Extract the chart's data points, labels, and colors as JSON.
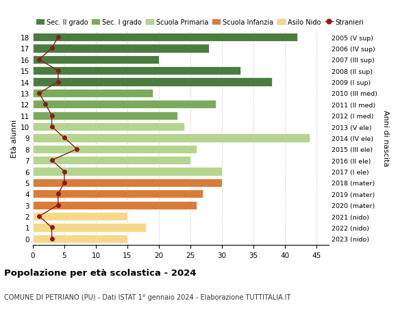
{
  "ages": [
    18,
    17,
    16,
    15,
    14,
    13,
    12,
    11,
    10,
    9,
    8,
    7,
    6,
    5,
    4,
    3,
    2,
    1,
    0
  ],
  "years": [
    "2005 (V sup)",
    "2006 (IV sup)",
    "2007 (III sup)",
    "2008 (II sup)",
    "2009 (I sup)",
    "2010 (III med)",
    "2011 (II med)",
    "2012 (I med)",
    "2013 (V ele)",
    "2014 (IV ele)",
    "2015 (III ele)",
    "2016 (II ele)",
    "2017 (I ele)",
    "2018 (mater)",
    "2019 (mater)",
    "2020 (mater)",
    "2021 (nido)",
    "2022 (nido)",
    "2023 (nido)"
  ],
  "bar_values": [
    42,
    28,
    20,
    33,
    38,
    19,
    29,
    23,
    24,
    44,
    26,
    25,
    30,
    30,
    27,
    26,
    15,
    18,
    15
  ],
  "bar_colors": [
    "#4a7c3f",
    "#4a7c3f",
    "#4a7c3f",
    "#4a7c3f",
    "#4a7c3f",
    "#7aab5c",
    "#7aab5c",
    "#7aab5c",
    "#b5d48e",
    "#b5d48e",
    "#b5d48e",
    "#b5d48e",
    "#b5d48e",
    "#d97c3a",
    "#d97c3a",
    "#d97c3a",
    "#f5d98b",
    "#f5d98b",
    "#f5d98b"
  ],
  "stranieri_values": [
    4,
    3,
    1,
    4,
    4,
    1,
    2,
    3,
    3,
    5,
    7,
    3,
    5,
    5,
    4,
    4,
    1,
    3,
    3
  ],
  "stranieri_color": "#8b1a1a",
  "legend_labels": [
    "Sec. II grado",
    "Sec. I grado",
    "Scuola Primaria",
    "Scuola Infanzia",
    "Asilo Nido",
    "Stranieri"
  ],
  "legend_colors": [
    "#4a7c3f",
    "#7aab5c",
    "#b5d48e",
    "#d97c3a",
    "#f5d98b",
    "#8b1a1a"
  ],
  "ylabel_left": "Età alunni",
  "ylabel_right": "Anni di nascita",
  "title": "Popolazione per età scolastica - 2024",
  "subtitle": "COMUNE DI PETRIANO (PU) - Dati ISTAT 1° gennaio 2024 - Elaborazione TUTTITALIA.IT",
  "xlim": [
    0,
    47
  ],
  "xticks": [
    0,
    5,
    10,
    15,
    20,
    25,
    30,
    35,
    40,
    45
  ],
  "background_color": "#ffffff",
  "grid_color": "#cccccc",
  "bar_height": 0.75
}
